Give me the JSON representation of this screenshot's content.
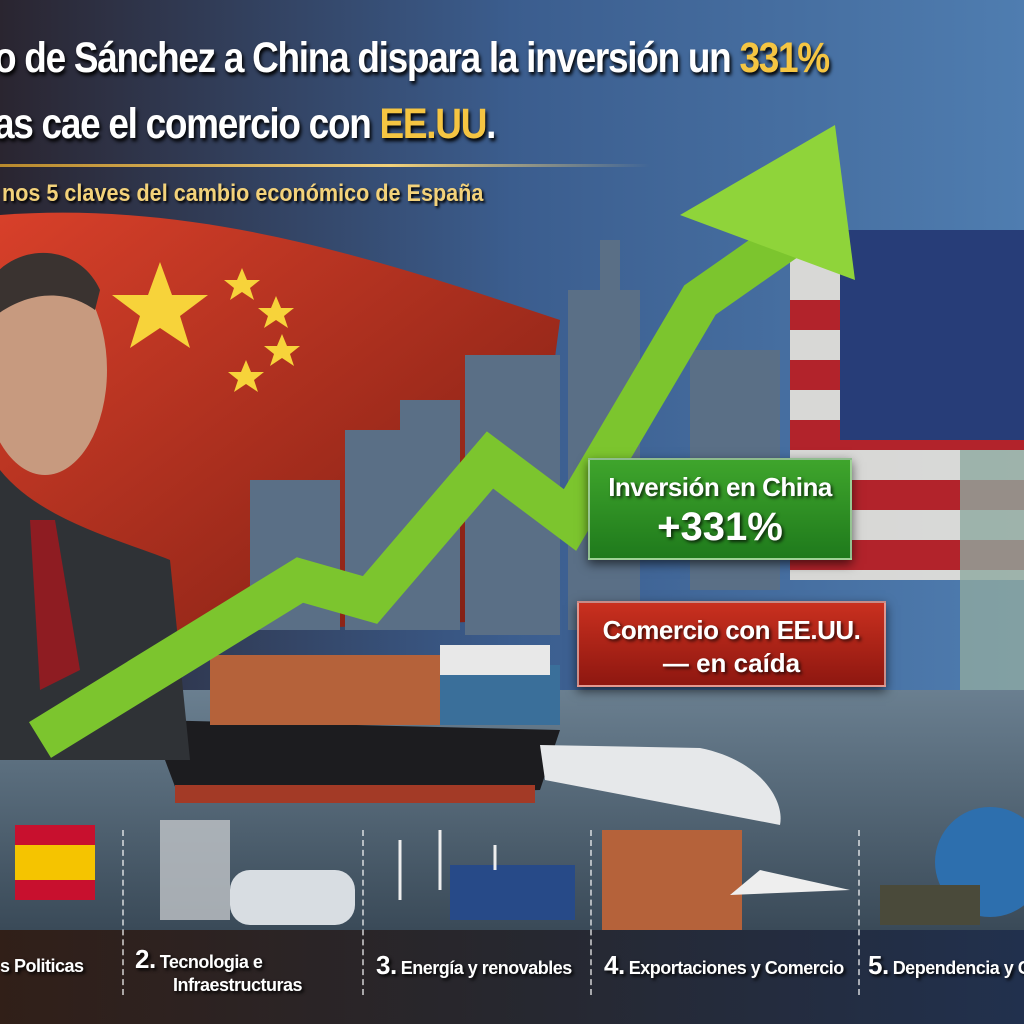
{
  "headline": {
    "line1_prefix": "o de Sánchez a China dispara la inversión un ",
    "line1_highlight": "331%",
    "line2_prefix": "as cae el comercio con ",
    "line2_highlight": "EE.UU",
    "line2_suffix": "."
  },
  "subtitle": "nos 5 claves del cambio económico de España",
  "callouts": {
    "investment": {
      "label": "Inversión en China",
      "value": "+331%",
      "color": "#2e8f24"
    },
    "trade": {
      "label": "Comercio con EE.UU.",
      "value": "— en caída",
      "color": "#b0241a"
    }
  },
  "keys": [
    {
      "number": "",
      "label": "s Politicas",
      "icon": "spain-flag-icon"
    },
    {
      "number": "2.",
      "label": "Tecnologia e",
      "label2": "Infraestructuras",
      "icon": "robot-train-icon"
    },
    {
      "number": "3.",
      "label": "Energía y renovables",
      "icon": "wind-solar-icon"
    },
    {
      "number": "4.",
      "label": "Exportaciones y Comercio",
      "icon": "containers-plane-icon"
    },
    {
      "number": "5.",
      "label": "Dependencia y G",
      "icon": "globe-trucks-icon"
    }
  ],
  "colors": {
    "accent_gold": "#f5c542",
    "arrow_green": "#7cc52e"
  }
}
